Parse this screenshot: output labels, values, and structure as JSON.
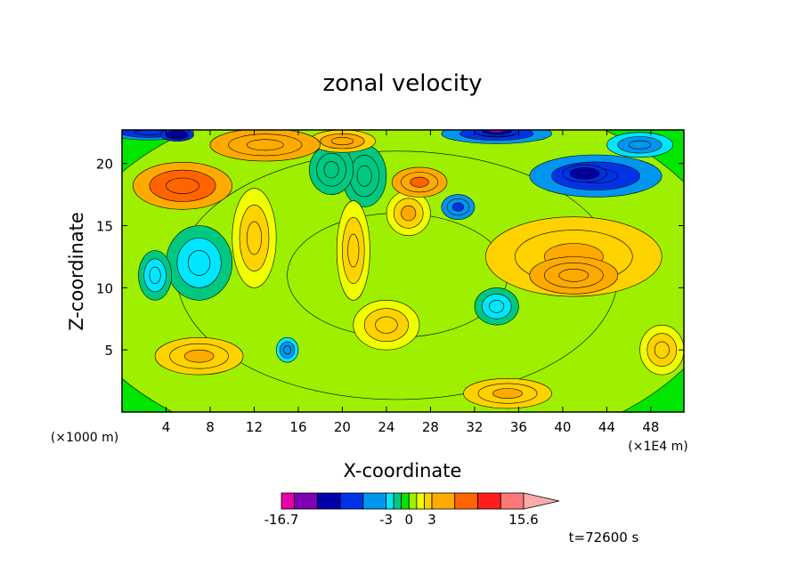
{
  "chart_data": {
    "type": "heatmap",
    "title": "zonal velocity",
    "xlabel": "X-coordinate",
    "ylabel": "Z-coordinate",
    "x_units": "(×1E4 m)",
    "y_units": "(×1000 m)",
    "x_ticks": [
      4,
      8,
      12,
      16,
      20,
      24,
      28,
      32,
      36,
      40,
      44,
      48
    ],
    "y_ticks": [
      5,
      10,
      15,
      20
    ],
    "xlim": [
      0,
      51
    ],
    "ylim": [
      0,
      22.7
    ],
    "time_label": "t=72600 s",
    "colorbar": {
      "levels": [
        -16.7,
        -15,
        -12,
        -9,
        -6,
        -3,
        -2,
        -1,
        0,
        1,
        2,
        3,
        6,
        9,
        12,
        15,
        15.6
      ],
      "colors": [
        "#e600aa",
        "#7d00b4",
        "#0000aa",
        "#0032e6",
        "#0096f0",
        "#00e6ff",
        "#00c880",
        "#00e600",
        "#9ef000",
        "#f0ff00",
        "#ffd200",
        "#ffaa00",
        "#ff6400",
        "#ff1e1e",
        "#ff7878",
        "#ffaaaa"
      ],
      "tick_labels": [
        "-16.7",
        "-3",
        "0",
        "3",
        "15.6"
      ]
    },
    "blobs": [
      {
        "x": 25,
        "z": 11,
        "rx": 30,
        "rz": 15,
        "v": 0.6
      },
      {
        "x": 5.5,
        "z": 18.2,
        "rx": 4.5,
        "rz": 1.9,
        "v": 7.5
      },
      {
        "x": 6,
        "z": 17.5,
        "rx": 1.6,
        "rz": 0.8,
        "v": 6
      },
      {
        "x": 13,
        "z": 21.5,
        "rx": 5,
        "rz": 1.3,
        "v": 5
      },
      {
        "x": 20,
        "z": 21.8,
        "rx": 3,
        "rz": 0.9,
        "v": 4
      },
      {
        "x": 27,
        "z": 18.5,
        "rx": 2.5,
        "rz": 1.2,
        "v": 6
      },
      {
        "x": 26,
        "z": 16,
        "rx": 2,
        "rz": 1.8,
        "v": 3
      },
      {
        "x": 2.5,
        "z": 22.5,
        "rx": 4,
        "rz": 0.6,
        "v": -8
      },
      {
        "x": 5,
        "z": 22.3,
        "rx": 1.5,
        "rz": 0.5,
        "v": -12
      },
      {
        "x": 34,
        "z": 22.4,
        "rx": 5,
        "rz": 0.8,
        "v": -9
      },
      {
        "x": 34,
        "z": 22.6,
        "rx": 2,
        "rz": 0.4,
        "v": -14
      },
      {
        "x": 43,
        "z": 19,
        "rx": 6,
        "rz": 1.7,
        "v": -9
      },
      {
        "x": 42,
        "z": 19.2,
        "rx": 2,
        "rz": 0.7,
        "v": -12
      },
      {
        "x": 30.5,
        "z": 16.5,
        "rx": 1.5,
        "rz": 1,
        "v": -7
      },
      {
        "x": 47,
        "z": 21.5,
        "rx": 3,
        "rz": 1,
        "v": -4
      },
      {
        "x": 7,
        "z": 12,
        "rx": 3,
        "rz": 3,
        "v": -2.5
      },
      {
        "x": 3,
        "z": 11,
        "rx": 1.5,
        "rz": 2,
        "v": -3
      },
      {
        "x": 34,
        "z": 8.5,
        "rx": 2,
        "rz": 1.5,
        "v": -2.8
      },
      {
        "x": 15,
        "z": 5,
        "rx": 1,
        "rz": 1,
        "v": -4
      },
      {
        "x": 19,
        "z": 19.5,
        "rx": 2,
        "rz": 2,
        "v": -2
      },
      {
        "x": 22,
        "z": 19,
        "rx": 2,
        "rz": 2.5,
        "v": -1.8
      },
      {
        "x": 41,
        "z": 12.5,
        "rx": 8,
        "rz": 3.2,
        "v": 3.5
      },
      {
        "x": 41,
        "z": 11,
        "rx": 4,
        "rz": 1.5,
        "v": 5.5
      },
      {
        "x": 7,
        "z": 4.5,
        "rx": 4,
        "rz": 1.5,
        "v": 3.5
      },
      {
        "x": 35,
        "z": 1.5,
        "rx": 4,
        "rz": 1.2,
        "v": 3.5
      },
      {
        "x": 49,
        "z": 5,
        "rx": 2,
        "rz": 2,
        "v": 2.5
      },
      {
        "x": 12,
        "z": 14,
        "rx": 2,
        "rz": 4,
        "v": 2.5
      },
      {
        "x": 21,
        "z": 13,
        "rx": 1.5,
        "rz": 4,
        "v": 2.5
      },
      {
        "x": 24,
        "z": 7,
        "rx": 3,
        "rz": 2,
        "v": 2.5
      }
    ]
  }
}
